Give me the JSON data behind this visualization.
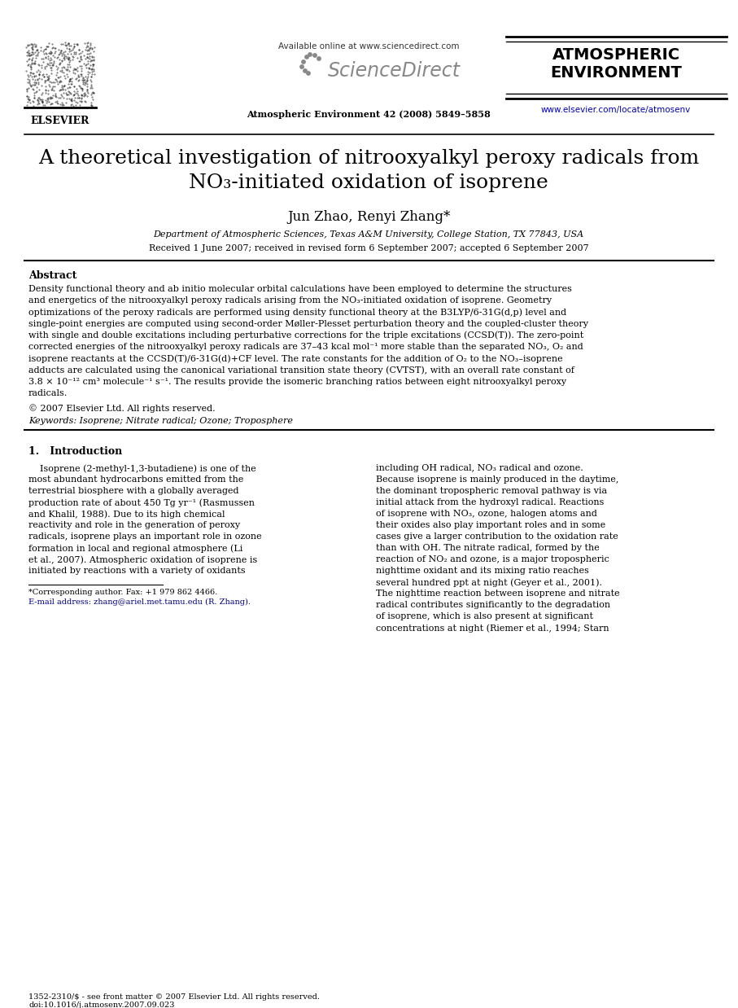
{
  "bg_color": "#ffffff",
  "text_color": "#000000",
  "header": {
    "available_online": "Available online at www.sciencedirect.com",
    "journal_name": "Atmospheric Environment 42 (2008) 5849–5858",
    "journal_bold": "ATMOSPHERIC\nENVIRONMENT",
    "url": "www.elsevier.com/locate/atmosenv",
    "elsevier_label": "ELSEVIER"
  },
  "title_line1": "A theoretical investigation of nitrooxyalkyl peroxy radicals from",
  "title_line2": "NO₃-initiated oxidation of isoprene",
  "authors": "Jun Zhao, Renyi Zhang*",
  "affiliation": "Department of Atmospheric Sciences, Texas A&M University, College Station, TX 77843, USA",
  "received": "Received 1 June 2007; received in revised form 6 September 2007; accepted 6 September 2007",
  "abstract_title": "Abstract",
  "copyright": "© 2007 Elsevier Ltd. All rights reserved.",
  "keywords": "Keywords: Isoprene; Nitrate radical; Ozone; Troposphere",
  "section1_title": "1.   Introduction",
  "footnote1": "*Corresponding author. Fax: +1 979 862 4466.",
  "footnote2": "E-mail address: zhang@ariel.met.tamu.edu (R. Zhang).",
  "footer1": "1352-2310/$ - see front matter © 2007 Elsevier Ltd. All rights reserved.",
  "footer2": "doi:10.1016/j.atmosenv.2007.09.023",
  "abstract_lines": [
    "Density functional theory and ab initio molecular orbital calculations have been employed to determine the structures",
    "and energetics of the nitrooxyalkyl peroxy radicals arising from the NO₃-initiated oxidation of isoprene. Geometry",
    "optimizations of the peroxy radicals are performed using density functional theory at the B3LYP/6-31G(d,p) level and",
    "single-point energies are computed using second-order Møller-Plesset perturbation theory and the coupled-cluster theory",
    "with single and double excitations including perturbative corrections for the triple excitations (CCSD(T)). The zero-point",
    "corrected energies of the nitrooxyalkyl peroxy radicals are 37–43 kcal mol⁻¹ more stable than the separated NO₃, O₂ and",
    "isoprene reactants at the CCSD(T)/6-31G(d)+CF level. The rate constants for the addition of O₂ to the NO₃–isoprene",
    "adducts are calculated using the canonical variational transition state theory (CVTST), with an overall rate constant of",
    "3.8 × 10⁻¹² cm³ molecule⁻¹ s⁻¹. The results provide the isomeric branching ratios between eight nitrooxyalkyl peroxy",
    "radicals."
  ],
  "left_col_lines": [
    "    Isoprene (2-methyl-1,3-butadiene) is one of the",
    "most abundant hydrocarbons emitted from the",
    "terrestrial biosphere with a globally averaged",
    "production rate of about 450 Tg yr⁻¹ (Rasmussen",
    "and Khalil, 1988). Due to its high chemical",
    "reactivity and role in the generation of peroxy",
    "radicals, isoprene plays an important role in ozone",
    "formation in local and regional atmosphere (Li",
    "et al., 2007). Atmospheric oxidation of isoprene is",
    "initiated by reactions with a variety of oxidants"
  ],
  "right_col_lines": [
    "including OH radical, NO₃ radical and ozone.",
    "Because isoprene is mainly produced in the daytime,",
    "the dominant tropospheric removal pathway is via",
    "initial attack from the hydroxyl radical. Reactions",
    "of isoprene with NO₃, ozone, halogen atoms and",
    "their oxides also play important roles and in some",
    "cases give a larger contribution to the oxidation rate",
    "than with OH. The nitrate radical, formed by the",
    "reaction of NO₂ and ozone, is a major tropospheric",
    "nighttime oxidant and its mixing ratio reaches",
    "several hundred ppt at night (Geyer et al., 2001).",
    "The nighttime reaction between isoprene and nitrate",
    "radical contributes significantly to the degradation",
    "of isoprene, which is also present at significant",
    "concentrations at night (Riemer et al., 1994; Starn"
  ]
}
